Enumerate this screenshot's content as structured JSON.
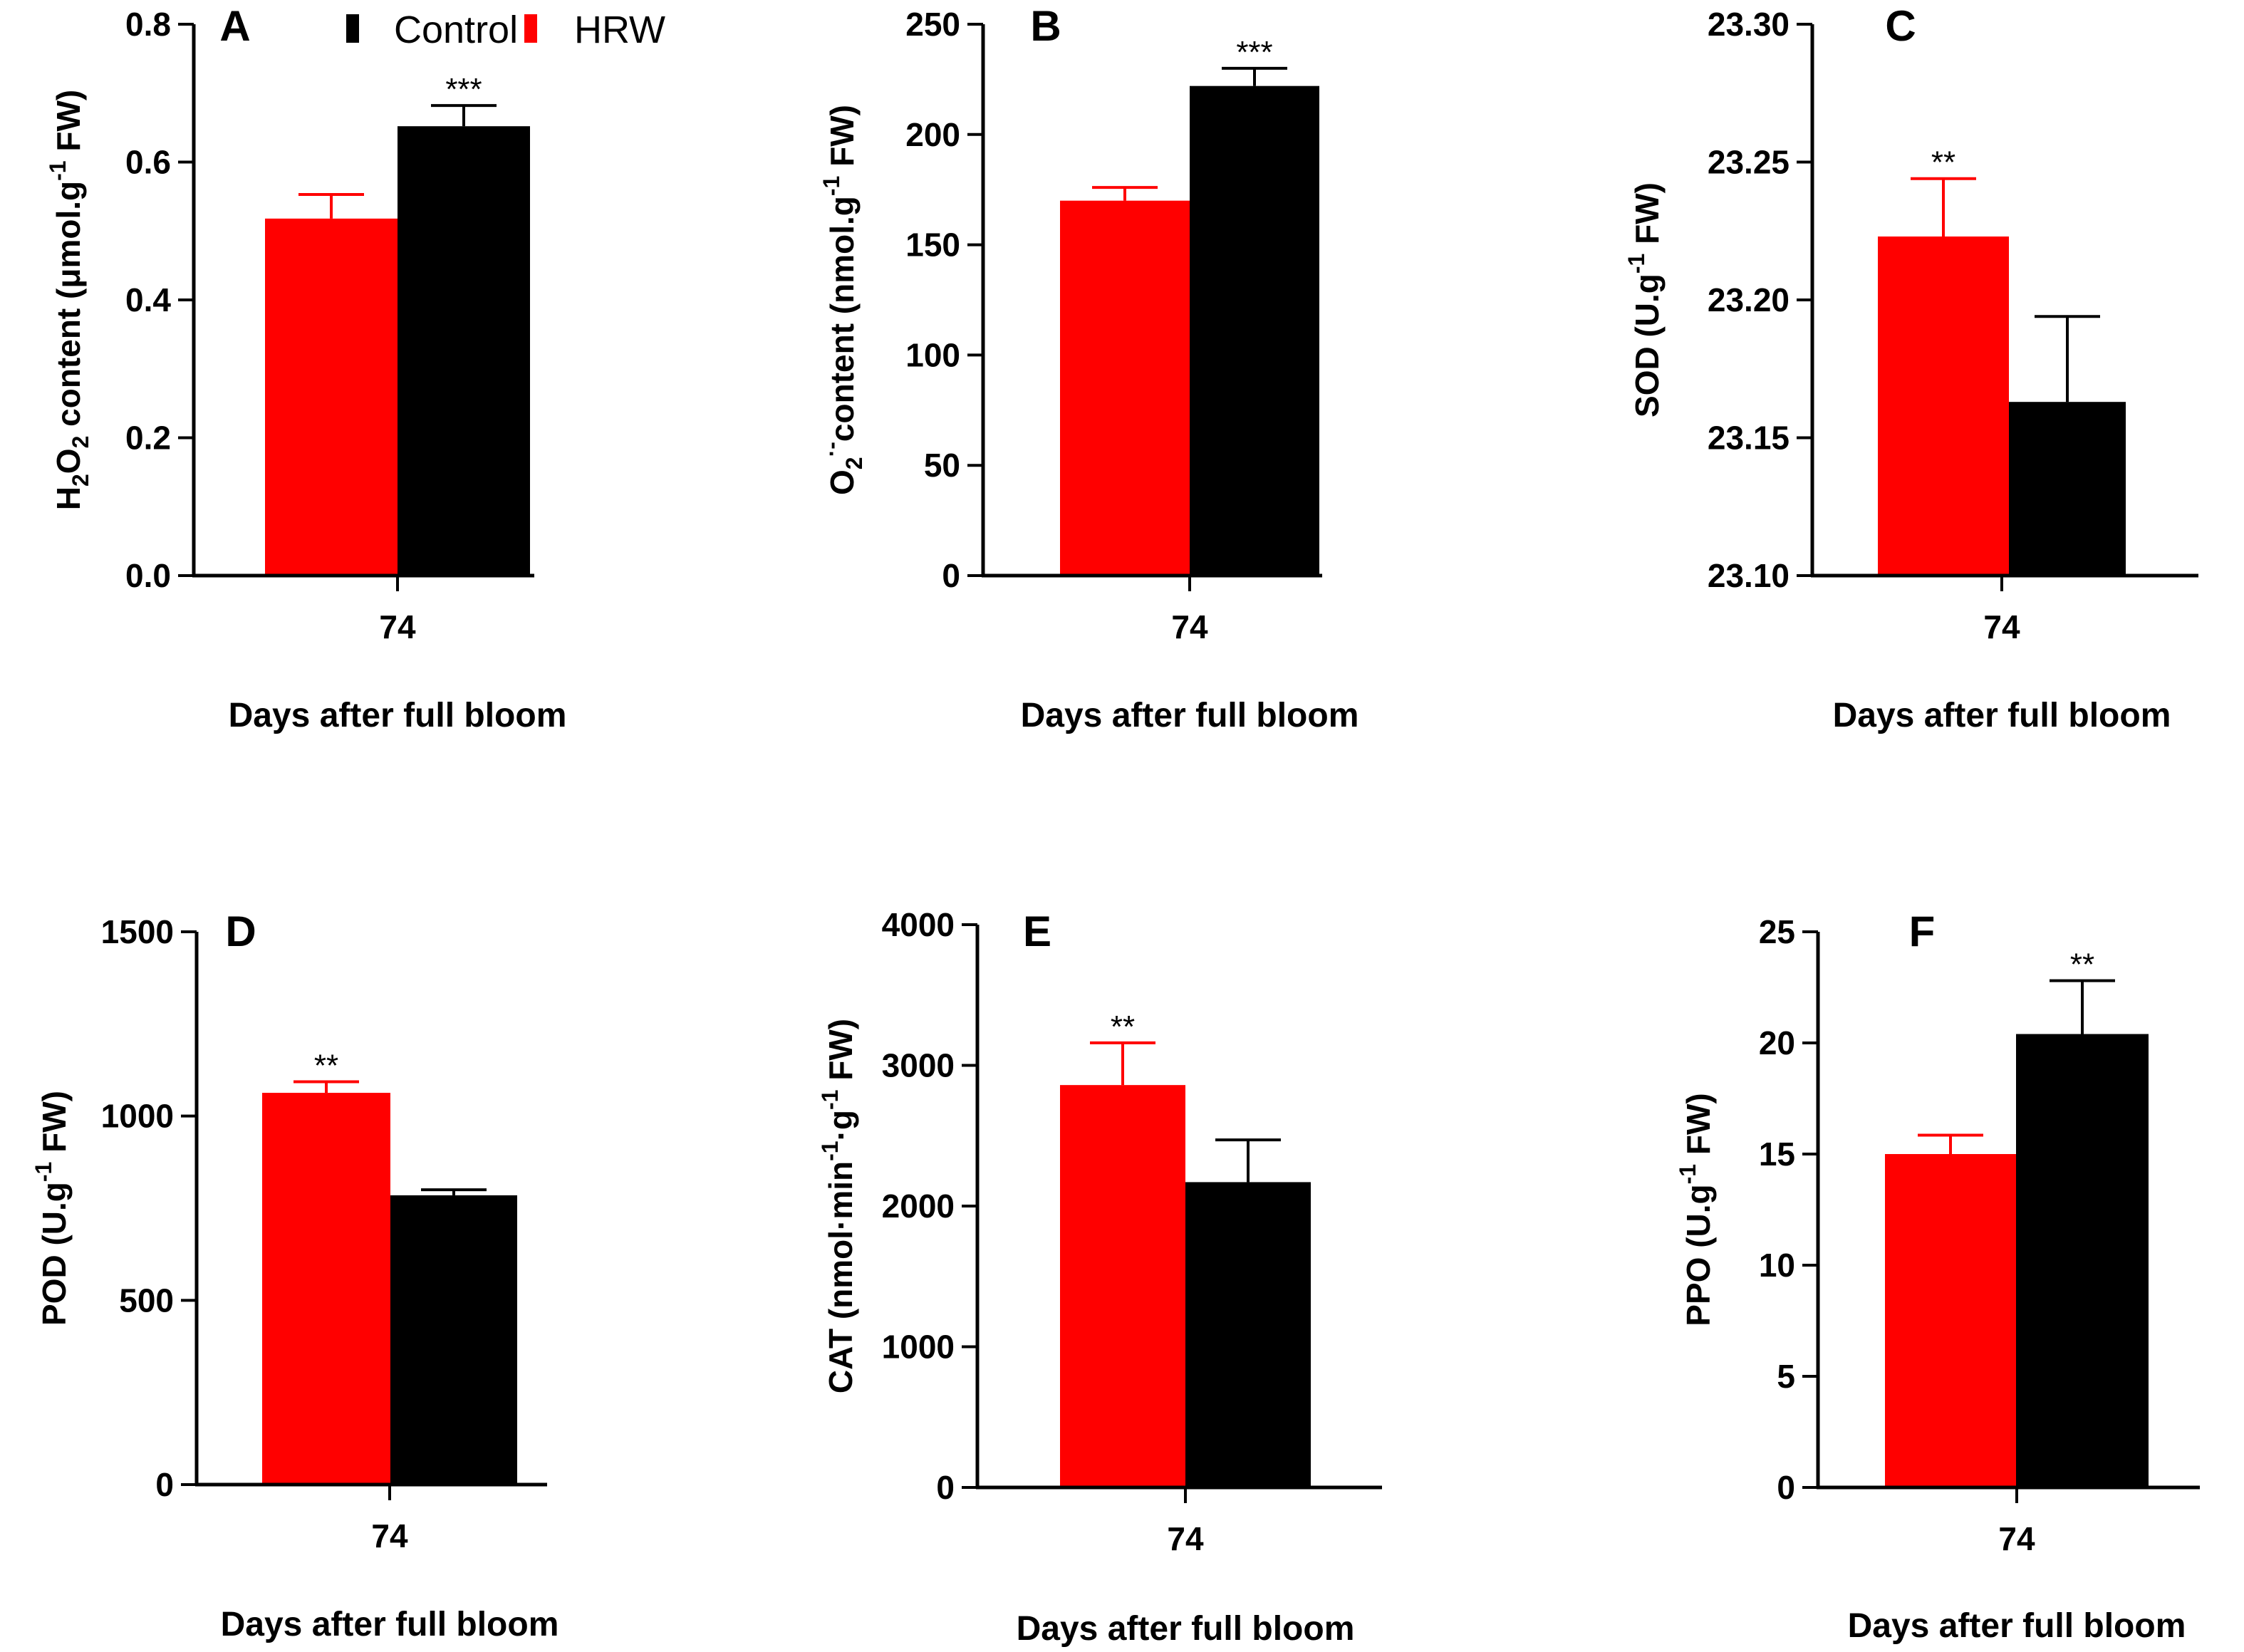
{
  "colors": {
    "HRW": "#ff0000",
    "Control": "#000000",
    "axis": "#000000",
    "background": "#ffffff"
  },
  "legend": {
    "items": [
      {
        "name": "Control",
        "color": "#000000"
      },
      {
        "name": "HRW",
        "color": "#ff0000"
      }
    ],
    "placement": "top, beside panel A"
  },
  "chart_data": [
    {
      "type": "bar",
      "panel": "A",
      "categories": [
        "74"
      ],
      "xlabel": "Days after full bloom",
      "ylabel_parts": [
        [
          "H",
          ""
        ],
        [
          "2",
          "sub"
        ],
        [
          "O",
          ""
        ],
        [
          "2",
          "sub"
        ],
        [
          " content (μmol.g",
          ""
        ],
        [
          "-1",
          "sup"
        ],
        [
          " FW)",
          ""
        ]
      ],
      "ylim": [
        0,
        0.8
      ],
      "ticks": [
        "0.0",
        "0.2",
        "0.4",
        "0.6",
        "0.8"
      ],
      "series": [
        {
          "name": "HRW",
          "values": [
            0.518
          ],
          "errors": [
            0.035
          ]
        },
        {
          "name": "Control",
          "values": [
            0.652
          ],
          "errors": [
            0.03
          ]
        }
      ],
      "significance": {
        "label": "***",
        "over": "Control"
      }
    },
    {
      "type": "bar",
      "panel": "B",
      "categories": [
        "74"
      ],
      "xlabel": "Days after full bloom",
      "ylabel_parts": [
        [
          "O",
          ""
        ],
        [
          "2",
          "sub"
        ],
        [
          "·-",
          "sup"
        ],
        [
          "content (nmol.g",
          ""
        ],
        [
          "-1",
          "sup"
        ],
        [
          " FW)",
          ""
        ]
      ],
      "ylim": [
        0,
        250
      ],
      "ticks": [
        "0",
        "50",
        "100",
        "150",
        "200",
        "250"
      ],
      "series": [
        {
          "name": "HRW",
          "values": [
            170
          ],
          "errors": [
            6
          ]
        },
        {
          "name": "Control",
          "values": [
            222
          ],
          "errors": [
            8
          ]
        }
      ],
      "significance": {
        "label": "***",
        "over": "Control"
      }
    },
    {
      "type": "bar",
      "panel": "C",
      "categories": [
        "74"
      ],
      "xlabel": "Days after full bloom",
      "ylabel_parts": [
        [
          "SOD (U.g",
          ""
        ],
        [
          "-1",
          "sup"
        ],
        [
          " FW)",
          ""
        ]
      ],
      "ylim": [
        23.1,
        23.3
      ],
      "ticks": [
        "23.10",
        "23.15",
        "23.20",
        "23.25",
        "23.30"
      ],
      "series": [
        {
          "name": "HRW",
          "values": [
            23.223
          ],
          "errors": [
            0.021
          ]
        },
        {
          "name": "Control",
          "values": [
            23.163
          ],
          "errors": [
            0.031
          ]
        }
      ],
      "significance": {
        "label": "**",
        "over": "HRW"
      }
    },
    {
      "type": "bar",
      "panel": "D",
      "categories": [
        "74"
      ],
      "xlabel": "Days after full bloom",
      "ylabel_parts": [
        [
          "POD (U.g",
          ""
        ],
        [
          "-1",
          "sup"
        ],
        [
          " FW)",
          ""
        ]
      ],
      "ylim": [
        0,
        1500
      ],
      "ticks": [
        "0",
        "500",
        "1000",
        "1500"
      ],
      "series": [
        {
          "name": "HRW",
          "values": [
            1063
          ],
          "errors": [
            30
          ]
        },
        {
          "name": "Control",
          "values": [
            785
          ],
          "errors": [
            15
          ]
        }
      ],
      "significance": {
        "label": "**",
        "over": "HRW"
      }
    },
    {
      "type": "bar",
      "panel": "E",
      "categories": [
        "74"
      ],
      "xlabel": "Days after full bloom",
      "ylabel_parts": [
        [
          "CAT (nmol·min",
          ""
        ],
        [
          "-1",
          "sup"
        ],
        [
          "·g",
          ""
        ],
        [
          "-1",
          "sup"
        ],
        [
          " FW)",
          ""
        ]
      ],
      "ylim": [
        0,
        4000
      ],
      "ticks": [
        "0",
        "1000",
        "2000",
        "3000",
        "4000"
      ],
      "series": [
        {
          "name": "HRW",
          "values": [
            2860
          ],
          "errors": [
            300
          ]
        },
        {
          "name": "Control",
          "values": [
            2170
          ],
          "errors": [
            300
          ]
        }
      ],
      "significance": {
        "label": "**",
        "over": "HRW"
      }
    },
    {
      "type": "bar",
      "panel": "F",
      "categories": [
        "74"
      ],
      "xlabel": "Days after full bloom",
      "ylabel_parts": [
        [
          "PPO (U.g",
          ""
        ],
        [
          "-1",
          "sup"
        ],
        [
          " FW)",
          ""
        ]
      ],
      "ylim": [
        0,
        25
      ],
      "ticks": [
        "0",
        "5",
        "10",
        "15",
        "20",
        "25"
      ],
      "series": [
        {
          "name": "HRW",
          "values": [
            15.0
          ],
          "errors": [
            0.85
          ]
        },
        {
          "name": "Control",
          "values": [
            20.4
          ],
          "errors": [
            2.4
          ]
        }
      ],
      "significance": {
        "label": "**",
        "over": "Control"
      }
    }
  ]
}
